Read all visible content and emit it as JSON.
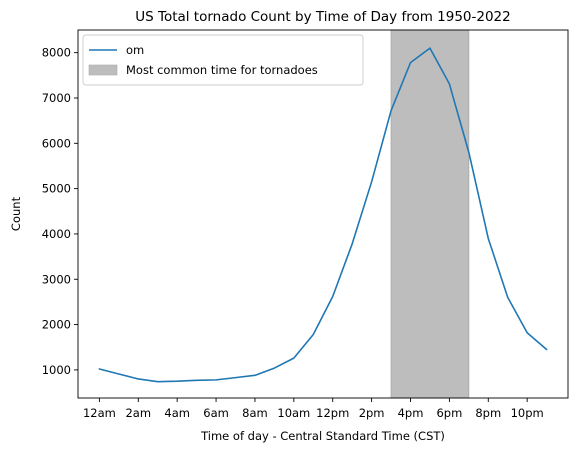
{
  "chart_data": {
    "type": "line",
    "title": "US Total tornado Count by Time of Day from 1950-2022",
    "xlabel": "Time of day - Central Standard Time (CST)",
    "ylabel": "Count",
    "x": [
      0,
      1,
      2,
      3,
      4,
      5,
      6,
      7,
      8,
      9,
      10,
      11,
      12,
      13,
      14,
      15,
      16,
      17,
      18,
      19,
      20,
      21,
      22,
      23
    ],
    "xlim": [
      -1.1,
      24.1
    ],
    "ylim": [
      380,
      8500
    ],
    "x_ticks": [
      {
        "x": 0,
        "label": "12am"
      },
      {
        "x": 2,
        "label": "2am"
      },
      {
        "x": 4,
        "label": "4am"
      },
      {
        "x": 6,
        "label": "6am"
      },
      {
        "x": 8,
        "label": "8am"
      },
      {
        "x": 10,
        "label": "10am"
      },
      {
        "x": 12,
        "label": "12pm"
      },
      {
        "x": 14,
        "label": "2pm"
      },
      {
        "x": 16,
        "label": "4pm"
      },
      {
        "x": 18,
        "label": "6pm"
      },
      {
        "x": 20,
        "label": "8pm"
      },
      {
        "x": 22,
        "label": "10pm"
      }
    ],
    "y_ticks": [
      1000,
      2000,
      3000,
      4000,
      5000,
      6000,
      7000,
      8000
    ],
    "series": [
      {
        "name": "om",
        "color": "#1f77b4",
        "values": [
          1020,
          910,
          800,
          740,
          750,
          770,
          780,
          830,
          880,
          1040,
          1260,
          1780,
          2620,
          3780,
          5150,
          6720,
          7780,
          8100,
          7310,
          5800,
          3900,
          2600,
          1820,
          1450
        ]
      }
    ],
    "shaded_region": {
      "label": "Most common time for tornadoes",
      "x_start": 15,
      "x_end": 19,
      "color": "#bdbdbd"
    },
    "legend_position": "top-left",
    "grid": false
  }
}
